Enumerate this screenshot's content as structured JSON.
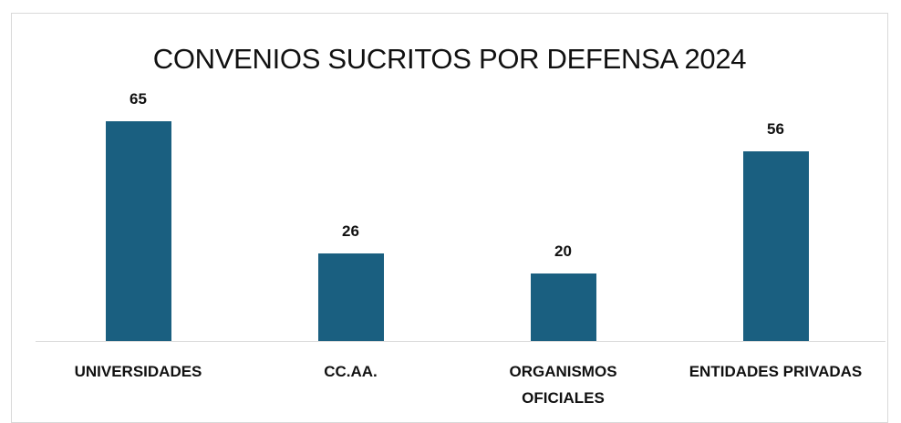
{
  "chart_data": {
    "type": "bar",
    "title": "CONVENIOS SUCRITOS POR DEFENSA 2024",
    "categories": [
      "UNIVERSIDADES",
      "CC.AA.",
      "ORGANISMOS OFICIALES",
      "ENTIDADES PRIVADAS"
    ],
    "values": [
      65,
      26,
      20,
      56
    ],
    "color": "#1a5f80"
  }
}
